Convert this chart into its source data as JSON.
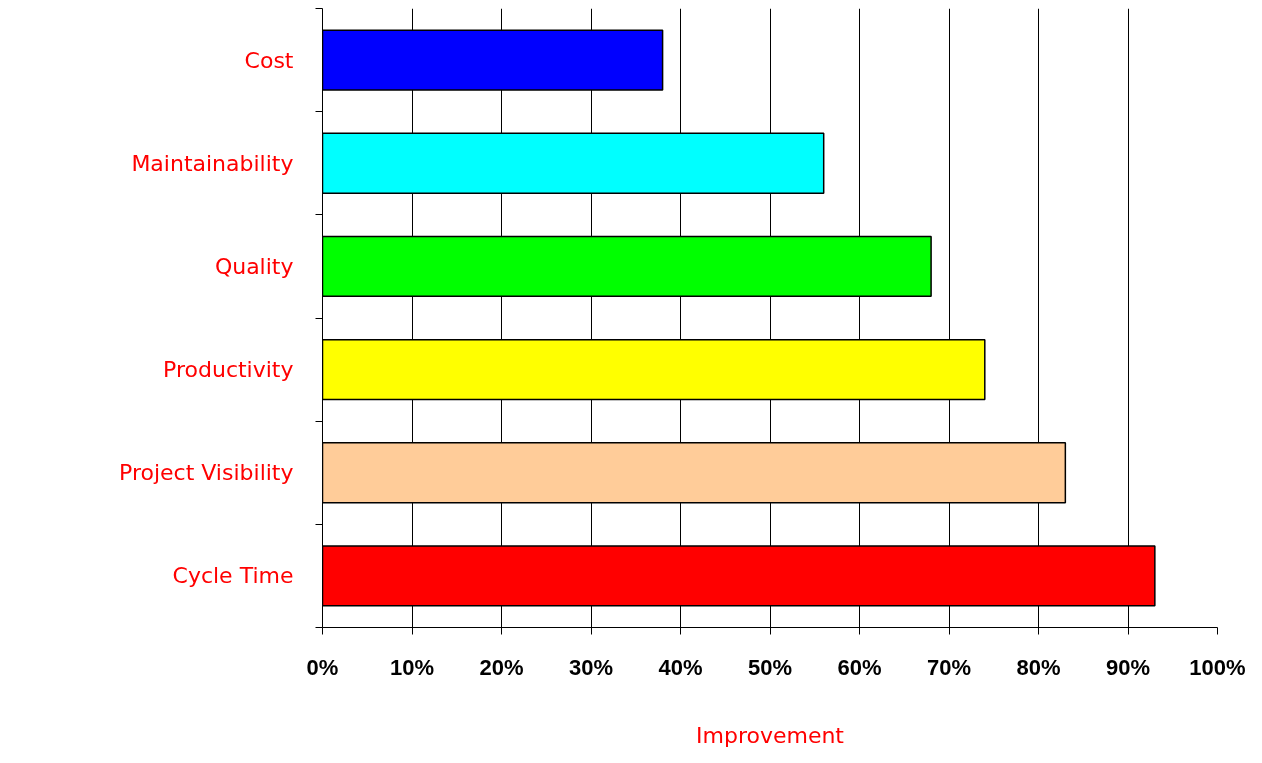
{
  "chart_data": {
    "type": "bar",
    "orientation": "horizontal",
    "xlabel": "Improvement",
    "categories": [
      "Cost",
      "Maintainability",
      "Quality",
      "Productivity",
      "Project Visibility",
      "Cycle Time"
    ],
    "values": [
      38,
      56,
      68,
      74,
      83,
      93
    ],
    "colors": [
      "#0000ff",
      "#00ffff",
      "#00ff00",
      "#ffff00",
      "#ffcc99",
      "#ff0000"
    ],
    "xlim": [
      0,
      100
    ],
    "xticks": [
      {
        "value": 0,
        "label": "0%"
      },
      {
        "value": 10,
        "label": "10%"
      },
      {
        "value": 20,
        "label": "20%"
      },
      {
        "value": 30,
        "label": "30%"
      },
      {
        "value": 40,
        "label": "40%"
      },
      {
        "value": 50,
        "label": "50%"
      },
      {
        "value": 60,
        "label": "60%"
      },
      {
        "value": 70,
        "label": "70%"
      },
      {
        "value": 80,
        "label": "80%"
      },
      {
        "value": 90,
        "label": "90%"
      },
      {
        "value": 100,
        "label": "100%"
      }
    ],
    "grid": "x"
  }
}
